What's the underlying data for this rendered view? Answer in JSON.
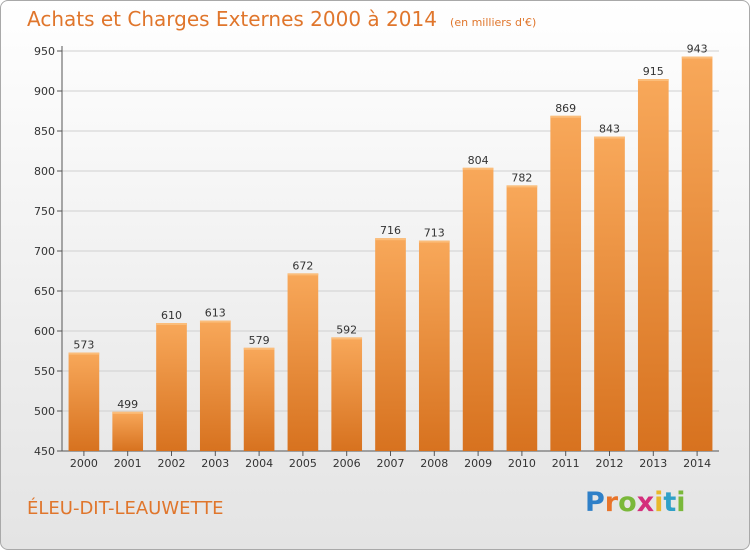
{
  "header": {
    "title": "Achats et Charges Externes 2000 à 2014",
    "subtitle": "(en milliers d'€)"
  },
  "footer": {
    "commune": "ÉLEU-DIT-LEAUWETTE",
    "logo_letters": [
      "P",
      "r",
      "o",
      "x",
      "i",
      "t",
      "i"
    ],
    "logo_colors": [
      "#2f80c8",
      "#e8742a",
      "#7ab83a",
      "#d42f7c",
      "#e8b82a",
      "#2fa0c8",
      "#7ab83a"
    ]
  },
  "colors": {
    "bar": "#f0913a",
    "bar_light": "#f8a85a",
    "bar_dark": "#d7721f",
    "accent": "#e0762c",
    "grid": "#d0d0d0"
  },
  "chart_data": {
    "type": "bar",
    "title": "Achats et Charges Externes 2000 à 2014",
    "categories": [
      "2000",
      "2001",
      "2002",
      "2003",
      "2004",
      "2005",
      "2006",
      "2007",
      "2008",
      "2009",
      "2010",
      "2011",
      "2012",
      "2013",
      "2014"
    ],
    "values": [
      573,
      499,
      610,
      613,
      579,
      672,
      592,
      716,
      713,
      804,
      782,
      869,
      843,
      915,
      943
    ],
    "ylim": [
      450,
      950
    ],
    "yticks": [
      450,
      500,
      550,
      600,
      650,
      700,
      750,
      800,
      850,
      900,
      950
    ],
    "grid": true
  }
}
